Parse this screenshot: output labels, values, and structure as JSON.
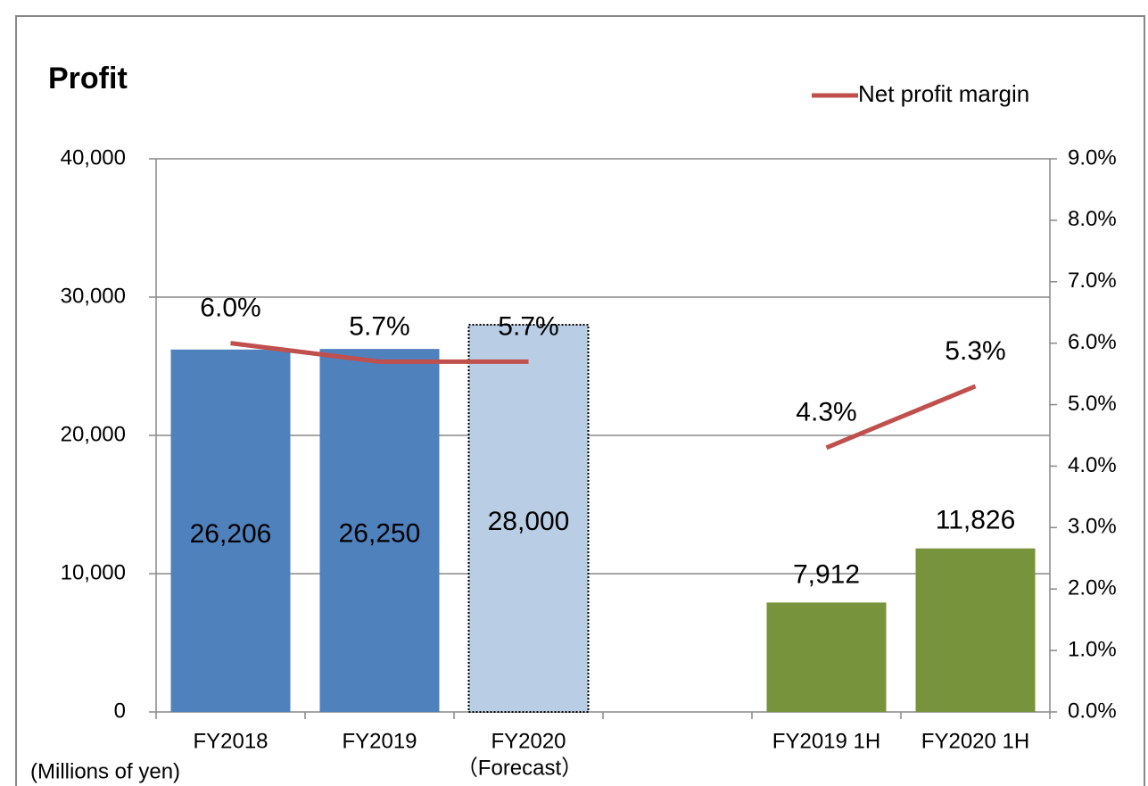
{
  "chart_data": {
    "type": "bar",
    "title": "Profit",
    "y_axis_label": "(Millions of yen)",
    "categories": [
      "FY2018",
      "FY2019",
      "FY2020",
      null,
      "FY2019 1H",
      "FY2020 1H"
    ],
    "forecast_note": "（Forecast）",
    "forecast_note_category": 2,
    "bars": {
      "values": [
        26206,
        26250,
        28000,
        null,
        7912,
        11826
      ],
      "value_labels": [
        "26,206",
        "26,250",
        "28,000",
        null,
        "7,912",
        "11,826"
      ],
      "colors": [
        "#4f81bd",
        "#4f81bd",
        "#b9cde5",
        null,
        "#77933c",
        "#77933c"
      ],
      "outline": [
        null,
        null,
        "dotted",
        null,
        null,
        null
      ],
      "label_positions": [
        "inside",
        "inside",
        "inside",
        null,
        "above",
        "above"
      ]
    },
    "series": [
      {
        "name": "Net profit margin",
        "color": "#c0504d",
        "axis": "y2",
        "values": [
          6.0,
          5.7,
          5.7,
          null,
          4.3,
          5.3
        ],
        "value_labels": [
          "6.0%",
          "5.7%",
          "5.7%",
          null,
          "4.3%",
          "5.3%"
        ]
      }
    ],
    "ylim": [
      0,
      40000
    ],
    "yticks": [
      0,
      {
        "value": 10000,
        "label": "10,000"
      },
      {
        "value": 20000,
        "label": "20,000"
      },
      {
        "value": 30000,
        "label": "30,000"
      },
      {
        "value": 40000,
        "label": "40,000"
      }
    ],
    "y2lim": [
      0,
      9
    ],
    "y2ticks": [
      {
        "value": 0,
        "label": "0.0%"
      },
      {
        "value": 1,
        "label": "1.0%"
      },
      {
        "value": 2,
        "label": "2.0%"
      },
      {
        "value": 3,
        "label": "3.0%"
      },
      {
        "value": 4,
        "label": "4.0%"
      },
      {
        "value": 5,
        "label": "5.0%"
      },
      {
        "value": 6,
        "label": "6.0%"
      },
      {
        "value": 7,
        "label": "7.0%"
      },
      {
        "value": 8,
        "label": "8.0%"
      },
      {
        "value": 9,
        "label": "9.0%"
      }
    ],
    "grid": true,
    "legend": "top-right"
  }
}
